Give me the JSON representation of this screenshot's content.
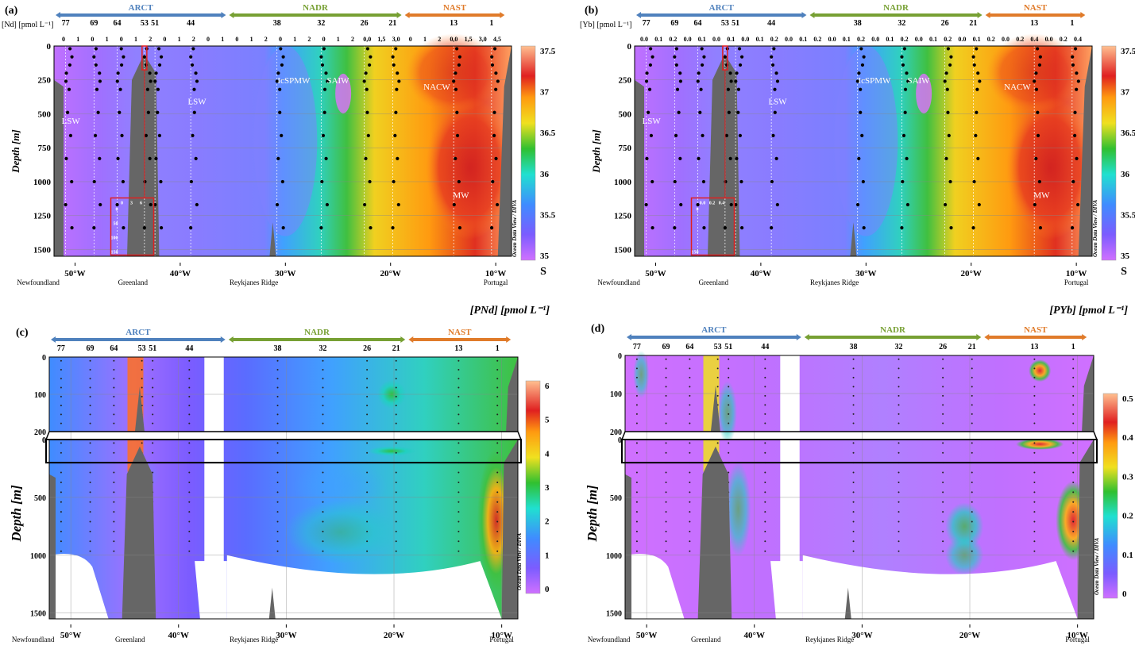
{
  "panels": {
    "a": {
      "letter": "(a)",
      "unit_label": "[Nd] [pmol L⁻¹]",
      "inset_ticks": [
        "0",
        "3",
        "6"
      ],
      "inset_depths": [
        "0",
        "50",
        "100",
        "150"
      ]
    },
    "b": {
      "letter": "(b)",
      "unit_label": "[Yb] [pmol L⁻¹]",
      "inset_ticks": [
        "0.0",
        "0.2",
        "0.4"
      ],
      "inset_depths": [
        "0",
        "150"
      ]
    },
    "c": {
      "letter": "(c)",
      "top_label": "[PNd] [pmol L⁻¹]"
    },
    "d": {
      "letter": "(d)",
      "top_label": "[PYb] [pmol L⁻¹]"
    }
  },
  "provinces": [
    {
      "name": "ARCT",
      "color": "#4f81bd"
    },
    {
      "name": "NADR",
      "color": "#77a033"
    },
    {
      "name": "NAST",
      "color": "#e07b2a"
    }
  ],
  "stations": [
    "77",
    "69",
    "64",
    "53",
    "51",
    "44",
    "38",
    "32",
    "26",
    "21",
    "13",
    "1"
  ],
  "profile_ticks_a": [
    "0",
    "1",
    "0",
    "1",
    "0",
    "1",
    "2",
    "0",
    "1",
    "2",
    "0",
    "1",
    "0",
    "1",
    "2",
    "0",
    "1",
    "2",
    "0",
    "1",
    "2",
    "0,0",
    "1,5",
    "3,0",
    "0",
    "1",
    "2",
    "0,0",
    "1,5",
    "3,0",
    "4,5"
  ],
  "profile_ticks_b": [
    "0.0",
    "0.1",
    "0.2",
    "0.0",
    "0.1",
    "0.0",
    "0.1",
    "0.0",
    "0.1",
    "0.2",
    "0.0",
    "0.1",
    "0.2",
    "0.0",
    "0.1",
    "0.2",
    "0.0",
    "0.1",
    "0.2",
    "0.0",
    "0.1",
    "0.2",
    "0.0",
    "0.1",
    "0.2",
    "0.0",
    "0.2",
    "0.4",
    "0.0",
    "0.2",
    "0.4"
  ],
  "water_masses": [
    "LSW",
    "LSW",
    "IcSPMW",
    "SAIW",
    "NACW",
    "MW"
  ],
  "locations": [
    "Newfoundland",
    "Greenland",
    "Reykjanes Ridge",
    "Portugal"
  ],
  "depth_axis_label": "Depth [m]",
  "odv_label": "Ocean Data View / DIVA",
  "salinity_label": "S",
  "chart_data": [
    {
      "type": "heatmap",
      "panel": "a",
      "variable": "S",
      "xlabel": "",
      "ylabel": "Depth [m]",
      "x_ticks": [
        "50°W",
        "40°W",
        "30°W",
        "20°W",
        "10°W"
      ],
      "y_ticks": [
        "0",
        "250",
        "500",
        "750",
        "1000",
        "1250",
        "1500"
      ],
      "ylim": [
        1550,
        0
      ],
      "colorbar": {
        "ticks": [
          "37.5",
          "37",
          "36.5",
          "36",
          "35.5",
          "35"
        ],
        "range": [
          34.8,
          37.5
        ]
      }
    },
    {
      "type": "heatmap",
      "panel": "b",
      "variable": "S",
      "xlabel": "",
      "ylabel": "Depth [m]",
      "x_ticks": [
        "50°W",
        "40°W",
        "30°W",
        "20°W",
        "10°W"
      ],
      "y_ticks": [
        "0",
        "250",
        "500",
        "750",
        "1000",
        "1250",
        "1500"
      ],
      "ylim": [
        1550,
        0
      ],
      "colorbar": {
        "ticks": [
          "37.5",
          "37",
          "36.5",
          "36",
          "35.5",
          "35"
        ],
        "range": [
          34.8,
          37.5
        ]
      }
    },
    {
      "type": "heatmap",
      "panel": "c",
      "variable": "[PNd] [pmol L⁻¹]",
      "xlabel": "",
      "ylabel": "Depth [m]",
      "x_ticks": [
        "50°W",
        "40°W",
        "30°W",
        "20°W",
        "10°W"
      ],
      "y_ticks_upper": [
        "0",
        "100",
        "200"
      ],
      "y_ticks": [
        "0",
        "500",
        "1000",
        "1500"
      ],
      "ylim": [
        1550,
        0
      ],
      "colorbar": {
        "ticks": [
          "6",
          "5",
          "4",
          "3",
          "2",
          "1",
          "0"
        ],
        "range": [
          0,
          6.5
        ]
      }
    },
    {
      "type": "heatmap",
      "panel": "d",
      "variable": "[PYb] [pmol L⁻¹]",
      "xlabel": "",
      "ylabel": "Depth [m]",
      "x_ticks": [
        "50°W",
        "40°W",
        "30°W",
        "20°W",
        "10°W"
      ],
      "y_ticks_upper": [
        "0",
        "100",
        "200"
      ],
      "y_ticks": [
        "0",
        "500",
        "1000",
        "1500"
      ],
      "ylim": [
        1550,
        0
      ],
      "colorbar": {
        "ticks": [
          "0.5",
          "0.4",
          "0.3",
          "0.2",
          "0.1",
          "0"
        ],
        "range": [
          0,
          0.55
        ]
      }
    }
  ]
}
